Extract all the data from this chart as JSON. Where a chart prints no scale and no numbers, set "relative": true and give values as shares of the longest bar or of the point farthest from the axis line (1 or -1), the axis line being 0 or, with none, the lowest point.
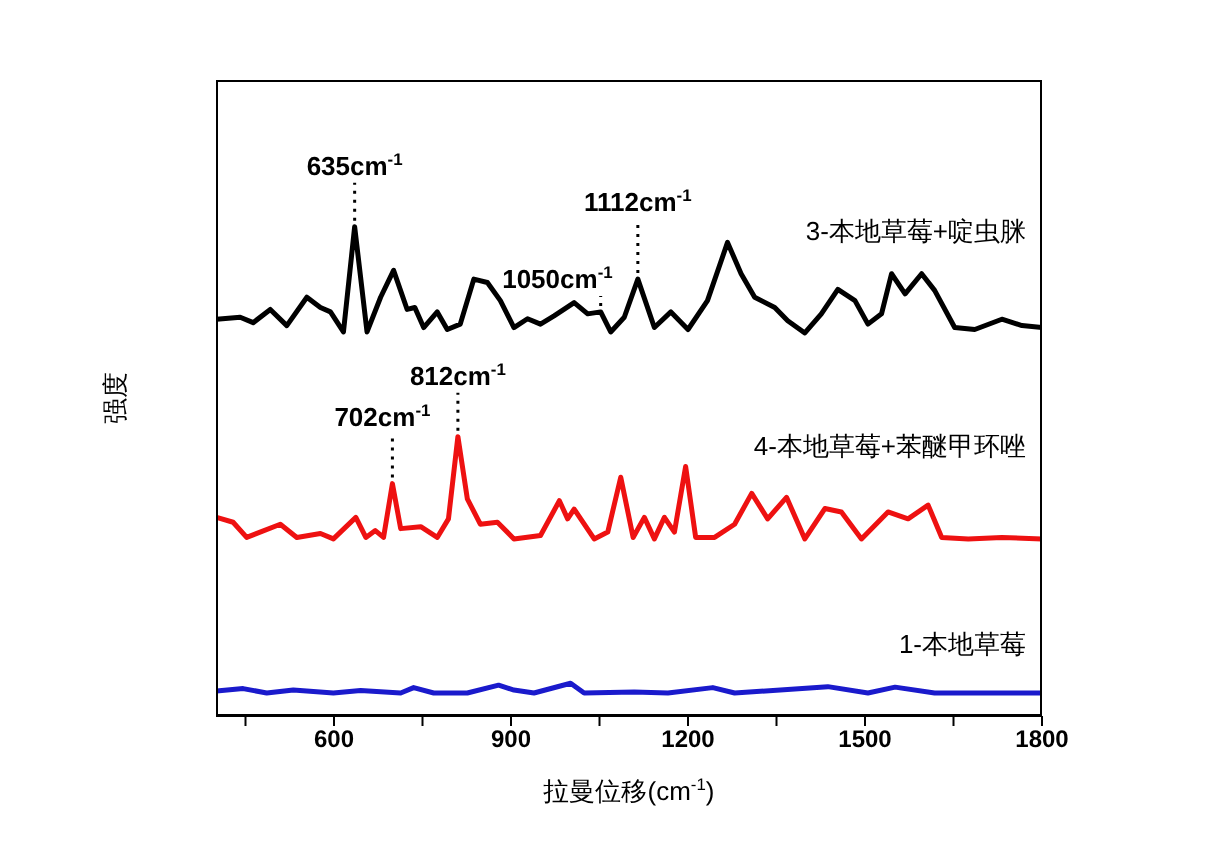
{
  "chart_data": {
    "type": "line",
    "relative": true,
    "xlabel": "拉曼位移(cm$^{-1}$)",
    "ylabel": "强度",
    "marker": "none",
    "line_style": "solid",
    "xlim": [
      400,
      1800
    ],
    "xticks": [
      {
        "value": 450,
        "label": null
      },
      600,
      {
        "value": 750,
        "label": null
      },
      900,
      {
        "value": 1050,
        "label": null
      },
      1200,
      {
        "value": 1350,
        "label": null
      },
      1500,
      {
        "value": 1650,
        "label": null
      },
      1800
    ],
    "series": [
      {
        "name": "3-本地草莓+啶虫脒",
        "color": "#000000",
        "x": [
          401,
          441,
          463,
          492,
          520,
          554,
          577,
          594,
          616,
          635,
          656,
          679,
          701,
          724,
          737,
          752,
          775,
          792,
          814,
          837,
          860,
          882,
          905,
          928,
          950,
          973,
          1007,
          1030,
          1052,
          1069,
          1092,
          1115,
          1143,
          1171,
          1200,
          1233,
          1267,
          1290,
          1313,
          1347,
          1369,
          1398,
          1426,
          1454,
          1483,
          1505,
          1528,
          1545,
          1568,
          1596,
          1618,
          1652,
          1686,
          1732,
          1766,
          1800
        ],
        "values": [
          0.811,
          0.815,
          0.804,
          0.831,
          0.798,
          0.856,
          0.835,
          0.826,
          0.785,
          1,
          0.785,
          0.856,
          0.911,
          0.831,
          0.835,
          0.794,
          0.826,
          0.79,
          0.801,
          0.893,
          0.886,
          0.849,
          0.794,
          0.812,
          0.801,
          0.818,
          0.845,
          0.822,
          0.826,
          0.785,
          0.815,
          0.893,
          0.794,
          0.826,
          0.79,
          0.849,
          0.968,
          0.904,
          0.856,
          0.835,
          0.808,
          0.783,
          0.822,
          0.872,
          0.849,
          0.801,
          0.822,
          0.904,
          0.863,
          0.904,
          0.87,
          0.794,
          0.79,
          0.811,
          0.798,
          0.794
        ]
      },
      {
        "name": "4-本地草莓+苯醚甲环唑",
        "color": "#ee1111",
        "x": [
          401,
          429,
          452,
          509,
          537,
          577,
          599,
          637,
          654,
          670,
          684,
          699,
          713,
          747,
          775,
          794,
          810,
          826,
          848,
          877,
          905,
          950,
          982,
          996,
          1007,
          1041,
          1064,
          1086,
          1107,
          1126,
          1143,
          1160,
          1177,
          1196,
          1213,
          1245,
          1279,
          1308,
          1335,
          1367,
          1398,
          1432,
          1460,
          1494,
          1539,
          1573,
          1607,
          1630,
          1675,
          1732,
          1800
        ],
        "values": [
          0.406,
          0.396,
          0.365,
          0.392,
          0.365,
          0.373,
          0.362,
          0.406,
          0.365,
          0.379,
          0.365,
          0.475,
          0.383,
          0.387,
          0.365,
          0.403,
          0.571,
          0.444,
          0.392,
          0.396,
          0.362,
          0.369,
          0.44,
          0.403,
          0.423,
          0.362,
          0.376,
          0.488,
          0.365,
          0.406,
          0.362,
          0.406,
          0.376,
          0.51,
          0.365,
          0.365,
          0.392,
          0.455,
          0.403,
          0.447,
          0.362,
          0.424,
          0.417,
          0.362,
          0.417,
          0.403,
          0.431,
          0.365,
          0.362,
          0.365,
          0.362
        ]
      },
      {
        "name": "1-本地草莓",
        "color": "#1a1acc",
        "x": [
          401,
          446,
          486,
          531,
          599,
          645,
          713,
          735,
          769,
          826,
          879,
          905,
          939,
          1001,
          1024,
          1109,
          1166,
          1242,
          1279,
          1437,
          1505,
          1551,
          1618,
          1800
        ],
        "values": [
          0.051,
          0.056,
          0.047,
          0.053,
          0.047,
          0.052,
          0.047,
          0.058,
          0.047,
          0.047,
          0.063,
          0.053,
          0.047,
          0.067,
          0.047,
          0.049,
          0.047,
          0.058,
          0.047,
          0.06,
          0.047,
          0.059,
          0.047,
          0.047
        ]
      }
    ],
    "annotations": [
      {
        "text": "635cm$^{-1}$",
        "x": 635,
        "y": 1
      },
      {
        "text": "1050cm$^{-1}$",
        "x": 1052,
        "y": 0.826
      },
      {
        "text": "1112cm$^{-1}$",
        "x": 1115,
        "y": 0.893
      },
      {
        "text": "702cm$^{-1}$",
        "x": 699,
        "y": 0.475
      },
      {
        "text": "812cm$^{-1}$",
        "x": 810,
        "y": 0.571
      }
    ]
  }
}
